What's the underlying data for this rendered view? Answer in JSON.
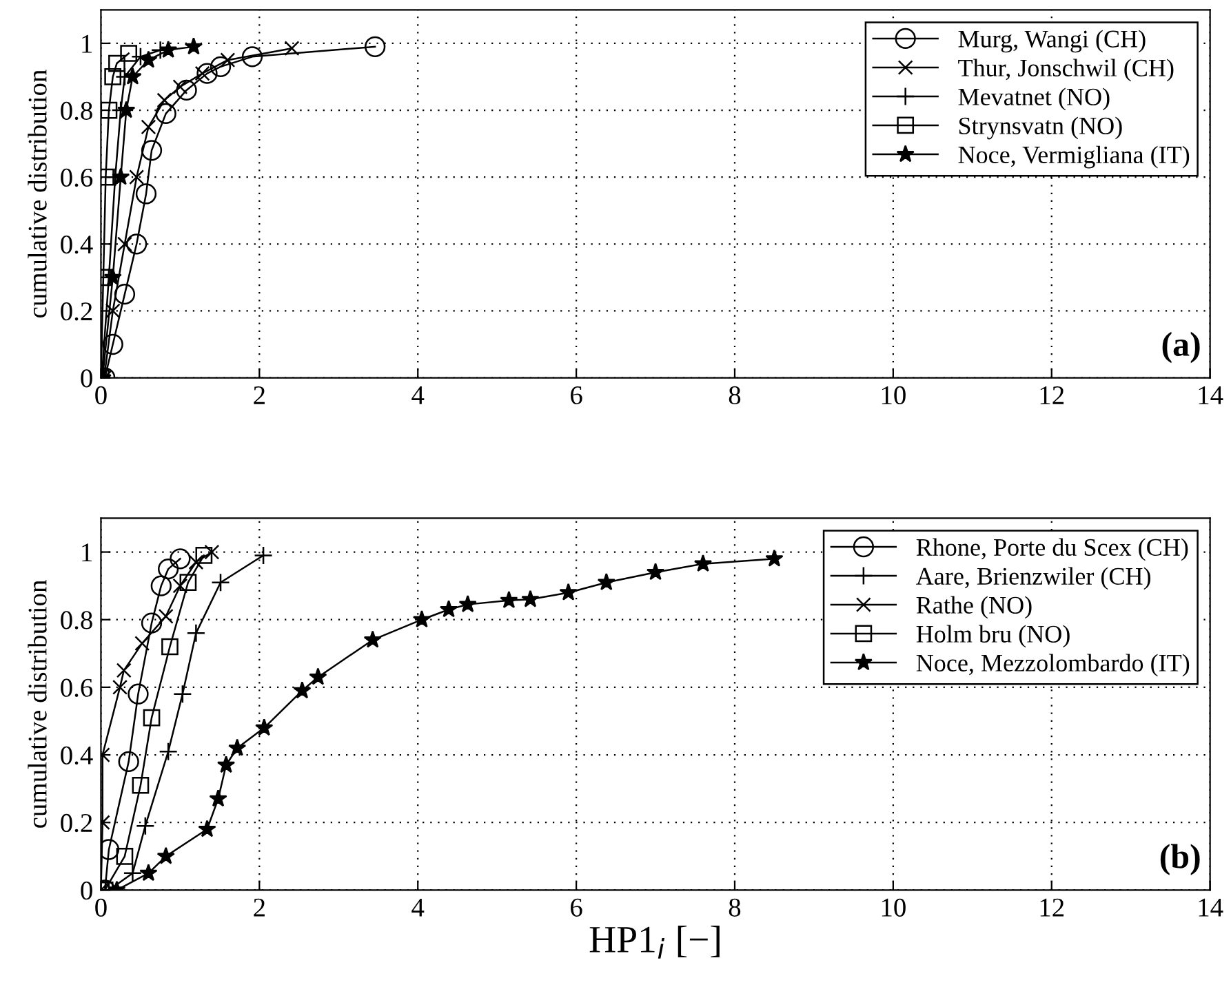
{
  "chart_data": [
    {
      "type": "line",
      "ylabel": "cumulative distribution",
      "xlim": [
        0,
        14
      ],
      "ylim": [
        0,
        1.1
      ],
      "xticks": [
        0,
        2,
        4,
        6,
        8,
        10,
        12,
        14
      ],
      "yticks": [
        0,
        0.2,
        0.4,
        0.6,
        0.8,
        1
      ],
      "grid": true,
      "legend": "top right",
      "line_style": "solid",
      "annotations": [
        "(a)"
      ],
      "series": [
        {
          "name": "Murg, Wangi (CH)",
          "color": "#000000",
          "marker": "circle",
          "x": [
            0.05,
            0.15,
            0.3,
            0.45,
            0.57,
            0.64,
            0.82,
            1.08,
            1.34,
            1.51,
            1.91,
            3.46
          ],
          "values": [
            0,
            0.1,
            0.25,
            0.4,
            0.55,
            0.68,
            0.79,
            0.86,
            0.91,
            0.93,
            0.96,
            0.99
          ]
        },
        {
          "name": "Thur, Jonschwil (CH)",
          "color": "#000000",
          "marker": "cross",
          "x": [
            0.04,
            0.15,
            0.3,
            0.45,
            0.6,
            0.8,
            1.0,
            1.28,
            1.6,
            2.41
          ],
          "values": [
            0,
            0.2,
            0.4,
            0.6,
            0.75,
            0.83,
            0.87,
            0.91,
            0.95,
            0.985
          ]
        },
        {
          "name": "Mevatnet (NO)",
          "color": "#000000",
          "marker": "plus",
          "x": [
            0.01,
            0.1,
            0.18,
            0.25,
            0.3,
            0.5,
            0.75
          ],
          "values": [
            0,
            0.3,
            0.6,
            0.8,
            0.9,
            0.96,
            0.98
          ]
        },
        {
          "name": "Strynsvatn (NO)",
          "color": "#000000",
          "marker": "square",
          "x": [
            0,
            0.03,
            0.06,
            0.1,
            0.15,
            0.2,
            0.35
          ],
          "values": [
            0,
            0.3,
            0.6,
            0.8,
            0.9,
            0.94,
            0.97
          ]
        },
        {
          "name": "Noce, Vermigliana (IT)",
          "color": "#000000",
          "marker": "star",
          "x": [
            0.02,
            0.15,
            0.25,
            0.32,
            0.4,
            0.6,
            0.85,
            1.17
          ],
          "values": [
            0,
            0.3,
            0.6,
            0.8,
            0.9,
            0.95,
            0.98,
            0.99
          ]
        }
      ]
    },
    {
      "type": "line",
      "xlabel": "HP1$_{i}$ [−]",
      "ylabel": "cumulative distribution",
      "xlim": [
        0,
        14
      ],
      "ylim": [
        0,
        1.1
      ],
      "xticks": [
        0,
        2,
        4,
        6,
        8,
        10,
        12,
        14
      ],
      "yticks": [
        0,
        0.2,
        0.4,
        0.6,
        0.8,
        1
      ],
      "grid": true,
      "legend": "top right",
      "line_style": "solid",
      "annotations": [
        "(b)"
      ],
      "series": [
        {
          "name": "Rhone, Porte du Scex (CH)",
          "color": "#000000",
          "marker": "circle",
          "x": [
            0.05,
            0.1,
            0.35,
            0.47,
            0.64,
            0.76,
            0.85,
            1.0
          ],
          "values": [
            0,
            0.12,
            0.38,
            0.58,
            0.79,
            0.9,
            0.95,
            0.98
          ]
        },
        {
          "name": "Aare, Brienzwiler (CH)",
          "color": "#000000",
          "marker": "plus",
          "x": [
            0.1,
            0.4,
            0.56,
            0.85,
            1.03,
            1.2,
            1.51,
            2.05
          ],
          "values": [
            0,
            0.05,
            0.19,
            0.41,
            0.58,
            0.76,
            0.91,
            0.99
          ]
        },
        {
          "name": "Rathe (NO)",
          "color": "#000000",
          "marker": "cross",
          "x": [
            0,
            0.02,
            0.02,
            0.24,
            0.29,
            0.52,
            0.82,
            1.0,
            1.2,
            1.4
          ],
          "values": [
            0,
            0.2,
            0.4,
            0.6,
            0.65,
            0.73,
            0.81,
            0.9,
            0.97,
            1.0
          ]
        },
        {
          "name": "Holm bru (NO)",
          "color": "#000000",
          "marker": "square",
          "x": [
            0.05,
            0.3,
            0.5,
            0.64,
            0.87,
            1.1,
            1.3
          ],
          "values": [
            0,
            0.1,
            0.31,
            0.51,
            0.72,
            0.91,
            0.99
          ]
        },
        {
          "name": "Noce, Mezzolombardo (IT)",
          "color": "#000000",
          "marker": "star",
          "x": [
            0.2,
            0.6,
            0.82,
            1.34,
            1.48,
            1.58,
            1.72,
            2.06,
            2.54,
            2.74,
            3.43,
            4.05,
            4.39,
            4.63,
            5.15,
            5.42,
            5.9,
            6.38,
            7.0,
            7.6,
            8.5
          ],
          "values": [
            0,
            0.05,
            0.1,
            0.18,
            0.27,
            0.37,
            0.42,
            0.48,
            0.59,
            0.63,
            0.74,
            0.8,
            0.83,
            0.845,
            0.857,
            0.86,
            0.88,
            0.91,
            0.94,
            0.965,
            0.98
          ]
        }
      ]
    }
  ]
}
